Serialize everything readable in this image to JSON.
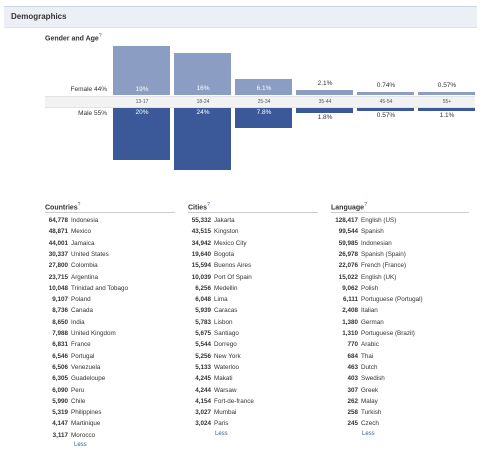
{
  "header": {
    "title": "Demographics"
  },
  "gender_age": {
    "title": "Gender and Age",
    "help_icon": "?",
    "female_label": "Female",
    "female_pct": "44%",
    "male_label": "Male",
    "male_pct": "55%",
    "groups": [
      {
        "age": "13-17",
        "female": 19,
        "female_label": "19%",
        "male": 20,
        "male_label": "20%"
      },
      {
        "age": "18-24",
        "female": 16,
        "female_label": "16%",
        "male": 24,
        "male_label": "24%"
      },
      {
        "age": "25-34",
        "female": 6.1,
        "female_label": "6.1%",
        "male": 7.8,
        "male_label": "7.8%"
      },
      {
        "age": "35-44",
        "female": 2.1,
        "female_label": "2.1%",
        "male": 1.8,
        "male_label": "1.8%"
      },
      {
        "age": "45-54",
        "female": 0.74,
        "female_label": "0.74%",
        "male": 0.57,
        "male_label": "0.57%"
      },
      {
        "age": "55+",
        "female": 0.57,
        "female_label": "0.57%",
        "male": 1.1,
        "male_label": "1.1%"
      }
    ]
  },
  "countries": {
    "title": "Countries",
    "help_icon": "?",
    "rows": [
      {
        "count": "64,778",
        "name": "Indonesia"
      },
      {
        "count": "48,871",
        "name": "Mexico"
      },
      {
        "count": "44,001",
        "name": "Jamaica"
      },
      {
        "count": "30,337",
        "name": "United States"
      },
      {
        "count": "27,800",
        "name": "Colombia"
      },
      {
        "count": "23,715",
        "name": "Argentina"
      },
      {
        "count": "10,048",
        "name": "Trinidad and Tobago"
      },
      {
        "count": "9,107",
        "name": "Poland"
      },
      {
        "count": "8,736",
        "name": "Canada"
      },
      {
        "count": "8,650",
        "name": "India"
      },
      {
        "count": "7,988",
        "name": "United Kingdom"
      },
      {
        "count": "6,831",
        "name": "France"
      },
      {
        "count": "6,546",
        "name": "Portugal"
      },
      {
        "count": "6,506",
        "name": "Venezuela"
      },
      {
        "count": "6,305",
        "name": "Guadeloupe"
      },
      {
        "count": "6,090",
        "name": "Peru"
      },
      {
        "count": "5,990",
        "name": "Chile"
      },
      {
        "count": "5,319",
        "name": "Philippines"
      },
      {
        "count": "4,147",
        "name": "Martinique"
      },
      {
        "count": "3,117",
        "name": "Morocco"
      }
    ],
    "less_label": "Less"
  },
  "cities": {
    "title": "Cities",
    "help_icon": "?",
    "rows": [
      {
        "count": "55,332",
        "name": "Jakarta"
      },
      {
        "count": "43,515",
        "name": "Kingston"
      },
      {
        "count": "34,942",
        "name": "Mexico City"
      },
      {
        "count": "19,640",
        "name": "Bogota"
      },
      {
        "count": "15,594",
        "name": "Buenos Aires"
      },
      {
        "count": "10,039",
        "name": "Port Of Spain"
      },
      {
        "count": "6,256",
        "name": "Medellin"
      },
      {
        "count": "6,048",
        "name": "Lima"
      },
      {
        "count": "5,939",
        "name": "Caracas"
      },
      {
        "count": "5,783",
        "name": "Lisbon"
      },
      {
        "count": "5,675",
        "name": "Santiago"
      },
      {
        "count": "5,544",
        "name": "Dorrego"
      },
      {
        "count": "5,256",
        "name": "New York"
      },
      {
        "count": "5,133",
        "name": "Waterloo"
      },
      {
        "count": "4,245",
        "name": "Makati"
      },
      {
        "count": "4,244",
        "name": "Warsaw"
      },
      {
        "count": "4,154",
        "name": "Fort-de-france"
      },
      {
        "count": "3,027",
        "name": "Mumbai"
      },
      {
        "count": "3,024",
        "name": "Paris"
      }
    ],
    "less_label": "Less"
  },
  "language": {
    "title": "Language",
    "help_icon": "?",
    "rows": [
      {
        "count": "128,417",
        "name": "English (US)"
      },
      {
        "count": "99,544",
        "name": "Spanish"
      },
      {
        "count": "59,985",
        "name": "Indonesian"
      },
      {
        "count": "26,978",
        "name": "Spanish (Spain)"
      },
      {
        "count": "22,076",
        "name": "French (France)"
      },
      {
        "count": "15,022",
        "name": "English (UK)"
      },
      {
        "count": "9,062",
        "name": "Polish"
      },
      {
        "count": "6,111",
        "name": "Portuguese (Portugal)"
      },
      {
        "count": "2,408",
        "name": "Italian"
      },
      {
        "count": "1,380",
        "name": "German"
      },
      {
        "count": "1,310",
        "name": "Portuguese (Brazil)"
      },
      {
        "count": "770",
        "name": "Arabic"
      },
      {
        "count": "684",
        "name": "Thai"
      },
      {
        "count": "463",
        "name": "Dutch"
      },
      {
        "count": "403",
        "name": "Swedish"
      },
      {
        "count": "307",
        "name": "Greek"
      },
      {
        "count": "262",
        "name": "Malay"
      },
      {
        "count": "258",
        "name": "Turkish"
      },
      {
        "count": "245",
        "name": "Czech"
      }
    ],
    "less_label": "Less"
  },
  "colors": {
    "female": "#8b9dc3",
    "male": "#3b5998",
    "link": "#3b5998"
  }
}
